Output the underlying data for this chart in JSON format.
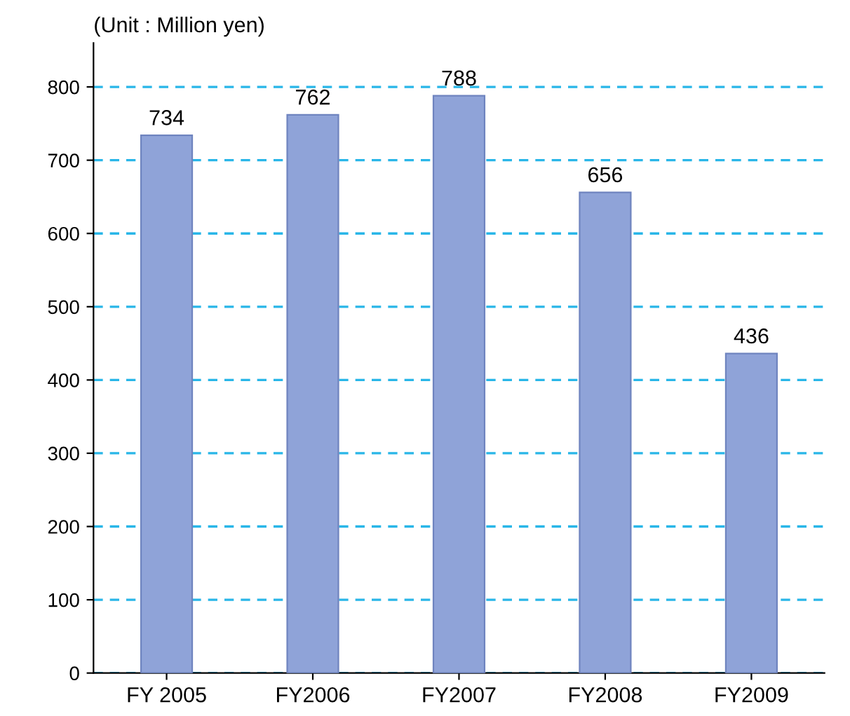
{
  "chart_data": {
    "type": "bar",
    "ylabel": "(Unit : Million yen)",
    "categories": [
      "FY 2005",
      "FY2006",
      "FY2007",
      "FY2008",
      "FY2009"
    ],
    "values": [
      734,
      762,
      788,
      656,
      436
    ],
    "color": "#8fa3d8",
    "ylim": [
      0,
      860
    ],
    "yticks": [
      0,
      100,
      200,
      300,
      400,
      500,
      600,
      700,
      800
    ],
    "grid": "y",
    "line_style": "dashed",
    "data_labels": true
  }
}
